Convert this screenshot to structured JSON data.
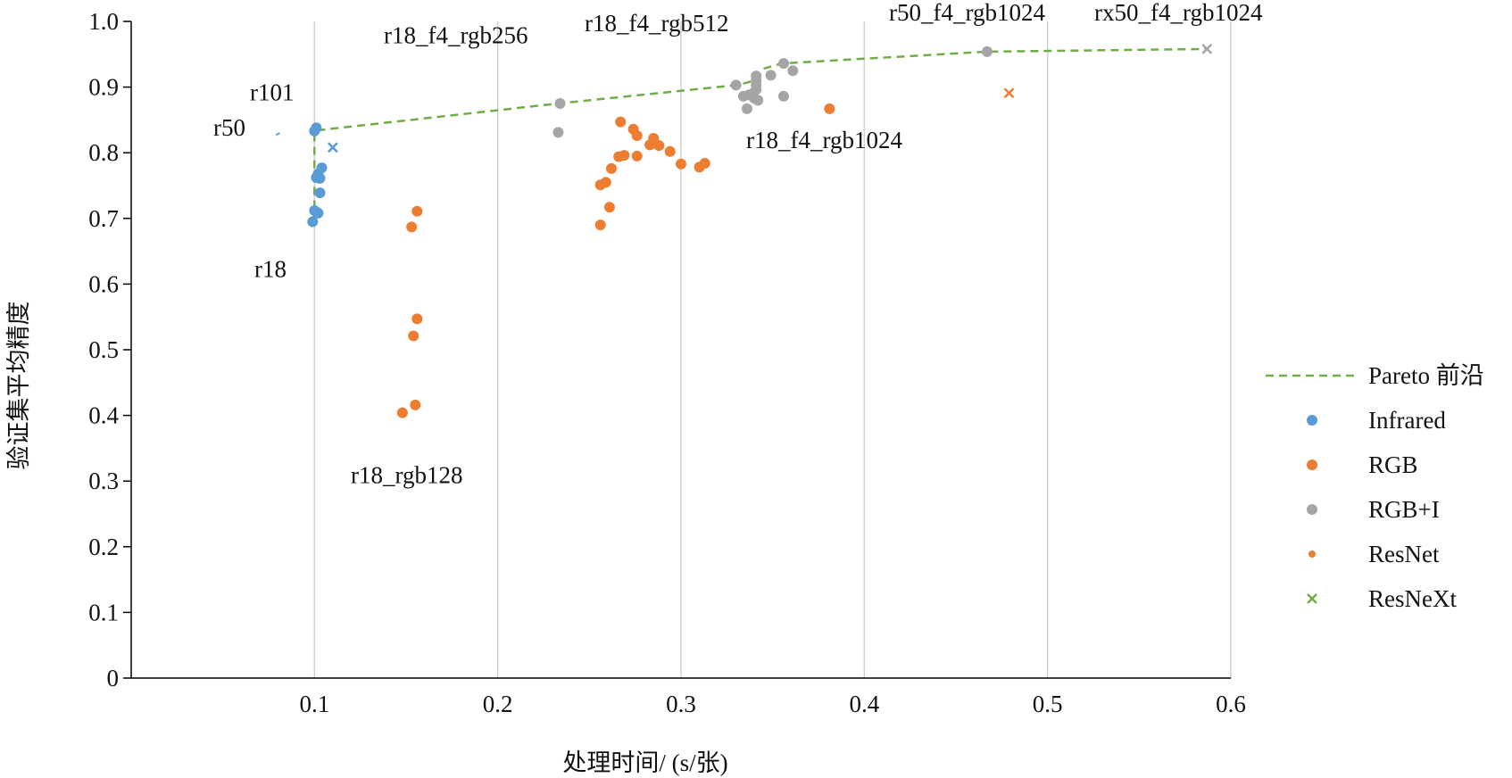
{
  "chart_data": {
    "type": "scatter",
    "xlabel": "处理时间/ (s/张)",
    "ylabel": "验证集平均精度",
    "xlim": [
      0,
      0.6
    ],
    "ylim": [
      0,
      1.0
    ],
    "x_ticks": [
      "0.1",
      "0.2",
      "0.3",
      "0.4",
      "0.5",
      "0.6"
    ],
    "x_tick_values": [
      0.1,
      0.2,
      0.3,
      0.4,
      0.5,
      0.6
    ],
    "y_ticks": [
      "0",
      "0.1",
      "0.2",
      "0.3",
      "0.4",
      "0.5",
      "0.6",
      "0.7",
      "0.8",
      "0.9",
      "1.0"
    ],
    "y_tick_values": [
      0,
      0.1,
      0.2,
      0.3,
      0.4,
      0.5,
      0.6,
      0.7,
      0.8,
      0.9,
      1.0
    ],
    "grid": "vertical",
    "legend_position": "right",
    "colors": {
      "pareto": "#70ad47",
      "infrared": "#5b9bd5",
      "rgb": "#ed7d31",
      "rgbi": "#a5a5a5",
      "resnet": "#ed7d31",
      "resnext": "#70ad47",
      "grid": "#d0d0d0",
      "axis": "#000000"
    },
    "legend": [
      {
        "name": "Pareto 前沿",
        "marker": "dashed-line",
        "color": "#70ad47"
      },
      {
        "name": "Infrared",
        "marker": "circle",
        "color": "#5b9bd5"
      },
      {
        "name": "RGB",
        "marker": "circle",
        "color": "#ed7d31"
      },
      {
        "name": "RGB+I",
        "marker": "circle",
        "color": "#a5a5a5"
      },
      {
        "name": "ResNet",
        "marker": "small-circle",
        "color": "#ed7d31"
      },
      {
        "name": "ResNeXt",
        "marker": "x",
        "color": "#70ad47"
      }
    ],
    "pareto_front": [
      {
        "x": 0.099,
        "y": 0.695
      },
      {
        "x": 0.1,
        "y": 0.71
      },
      {
        "x": 0.1,
        "y": 0.833
      },
      {
        "x": 0.101,
        "y": 0.834
      },
      {
        "x": 0.233,
        "y": 0.875
      },
      {
        "x": 0.33,
        "y": 0.903
      },
      {
        "x": 0.335,
        "y": 0.906
      },
      {
        "x": 0.34,
        "y": 0.91
      },
      {
        "x": 0.345,
        "y": 0.928
      },
      {
        "x": 0.355,
        "y": 0.936
      },
      {
        "x": 0.467,
        "y": 0.954
      },
      {
        "x": 0.587,
        "y": 0.958
      }
    ],
    "series": [
      {
        "name": "Infrared",
        "marker": "circle",
        "color": "#5b9bd5",
        "points": [
          {
            "x": 0.099,
            "y": 0.695
          },
          {
            "x": 0.1,
            "y": 0.712
          },
          {
            "x": 0.101,
            "y": 0.71
          },
          {
            "x": 0.102,
            "y": 0.708
          },
          {
            "x": 0.103,
            "y": 0.739
          },
          {
            "x": 0.101,
            "y": 0.762
          },
          {
            "x": 0.102,
            "y": 0.768
          },
          {
            "x": 0.103,
            "y": 0.761
          },
          {
            "x": 0.104,
            "y": 0.777
          },
          {
            "x": 0.1,
            "y": 0.833
          },
          {
            "x": 0.101,
            "y": 0.838
          }
        ]
      },
      {
        "name": "RGB",
        "marker": "circle",
        "color": "#ed7d31",
        "points": [
          {
            "x": 0.148,
            "y": 0.404
          },
          {
            "x": 0.155,
            "y": 0.416
          },
          {
            "x": 0.154,
            "y": 0.521
          },
          {
            "x": 0.156,
            "y": 0.547
          },
          {
            "x": 0.153,
            "y": 0.687
          },
          {
            "x": 0.156,
            "y": 0.711
          },
          {
            "x": 0.256,
            "y": 0.69
          },
          {
            "x": 0.261,
            "y": 0.717
          },
          {
            "x": 0.256,
            "y": 0.751
          },
          {
            "x": 0.259,
            "y": 0.755
          },
          {
            "x": 0.262,
            "y": 0.776
          },
          {
            "x": 0.266,
            "y": 0.794
          },
          {
            "x": 0.269,
            "y": 0.796
          },
          {
            "x": 0.276,
            "y": 0.795
          },
          {
            "x": 0.267,
            "y": 0.847
          },
          {
            "x": 0.274,
            "y": 0.836
          },
          {
            "x": 0.276,
            "y": 0.826
          },
          {
            "x": 0.283,
            "y": 0.812
          },
          {
            "x": 0.285,
            "y": 0.822
          },
          {
            "x": 0.288,
            "y": 0.811
          },
          {
            "x": 0.294,
            "y": 0.802
          },
          {
            "x": 0.3,
            "y": 0.783
          },
          {
            "x": 0.31,
            "y": 0.778
          },
          {
            "x": 0.313,
            "y": 0.784
          },
          {
            "x": 0.381,
            "y": 0.867
          }
        ]
      },
      {
        "name": "RGB+I",
        "marker": "circle",
        "color": "#a5a5a5",
        "points": [
          {
            "x": 0.233,
            "y": 0.831
          },
          {
            "x": 0.234,
            "y": 0.875
          },
          {
            "x": 0.33,
            "y": 0.903
          },
          {
            "x": 0.334,
            "y": 0.886
          },
          {
            "x": 0.336,
            "y": 0.867
          },
          {
            "x": 0.337,
            "y": 0.888
          },
          {
            "x": 0.339,
            "y": 0.89
          },
          {
            "x": 0.34,
            "y": 0.883
          },
          {
            "x": 0.342,
            "y": 0.88
          },
          {
            "x": 0.341,
            "y": 0.896
          },
          {
            "x": 0.341,
            "y": 0.903
          },
          {
            "x": 0.341,
            "y": 0.91
          },
          {
            "x": 0.341,
            "y": 0.917
          },
          {
            "x": 0.349,
            "y": 0.918
          },
          {
            "x": 0.356,
            "y": 0.936
          },
          {
            "x": 0.356,
            "y": 0.886
          },
          {
            "x": 0.361,
            "y": 0.925
          },
          {
            "x": 0.467,
            "y": 0.954
          }
        ]
      },
      {
        "name": "ResNeXt",
        "marker": "x",
        "color": "#5b9bd5",
        "points": [
          {
            "x": 0.11,
            "y": 0.808
          }
        ]
      },
      {
        "name": "ResNeXt",
        "marker": "x",
        "color": "#ed7d31",
        "points": [
          {
            "x": 0.479,
            "y": 0.891
          }
        ]
      },
      {
        "name": "ResNeXt",
        "marker": "x",
        "color": "#a5a5a5",
        "points": [
          {
            "x": 0.587,
            "y": 0.958
          }
        ]
      }
    ],
    "annotations": [
      {
        "text": "r101",
        "x": 0.085,
        "y": 0.88
      },
      {
        "text": "r50",
        "x": 0.063,
        "y": 0.826
      },
      {
        "text": "r18",
        "x": 0.085,
        "y": 0.611
      },
      {
        "text": "r18_rgb128",
        "x": 0.16,
        "y": 0.297
      },
      {
        "text": "r18_f4_rgb256",
        "x": 0.212,
        "y": 0.967
      },
      {
        "text": "r18_f4_rgb512",
        "x": 0.34,
        "y": 0.985
      },
      {
        "text": "r18_f4_rgb1024",
        "x": 0.39,
        "y": 0.807
      },
      {
        "text": "r50_f4_rgb1024",
        "x": 0.46,
        "y": 1.02
      },
      {
        "text": "rx50_f4_rgb1024",
        "x": 0.58,
        "y": 1.02
      }
    ]
  }
}
